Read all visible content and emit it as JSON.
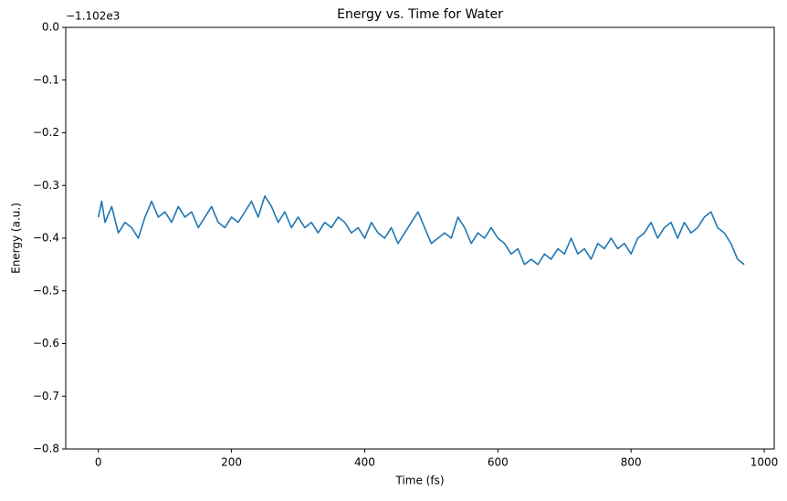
{
  "chart_data": {
    "type": "line",
    "title": "Energy vs. Time for Water",
    "x_label": "Time (fs)",
    "y_label": "Energy (a.u.)",
    "y_offset_label": "−1.102e3",
    "x": [
      0,
      5,
      10,
      20,
      30,
      40,
      50,
      60,
      70,
      80,
      90,
      100,
      110,
      120,
      130,
      140,
      150,
      160,
      170,
      180,
      190,
      200,
      210,
      220,
      230,
      240,
      250,
      260,
      270,
      280,
      290,
      300,
      310,
      320,
      330,
      340,
      350,
      360,
      370,
      380,
      390,
      400,
      410,
      420,
      430,
      440,
      450,
      460,
      470,
      480,
      490,
      500,
      510,
      520,
      530,
      540,
      550,
      560,
      570,
      580,
      590,
      600,
      610,
      620,
      630,
      640,
      650,
      660,
      670,
      680,
      690,
      700,
      710,
      720,
      730,
      740,
      750,
      760,
      770,
      780,
      790,
      800,
      810,
      820,
      830,
      840,
      850,
      860,
      870,
      880,
      890,
      900,
      910,
      920,
      930,
      940,
      950,
      960,
      970
    ],
    "series": [
      {
        "name": "Energy",
        "color": "#1f77b4",
        "values": [
          -0.36,
          -0.33,
          -0.37,
          -0.34,
          -0.39,
          -0.37,
          -0.38,
          -0.4,
          -0.36,
          -0.33,
          -0.36,
          -0.35,
          -0.37,
          -0.34,
          -0.36,
          -0.35,
          -0.38,
          -0.36,
          -0.34,
          -0.37,
          -0.38,
          -0.36,
          -0.37,
          -0.35,
          -0.33,
          -0.36,
          -0.32,
          -0.34,
          -0.37,
          -0.35,
          -0.38,
          -0.36,
          -0.38,
          -0.37,
          -0.39,
          -0.37,
          -0.38,
          -0.36,
          -0.37,
          -0.39,
          -0.38,
          -0.4,
          -0.37,
          -0.39,
          -0.4,
          -0.38,
          -0.41,
          -0.39,
          -0.37,
          -0.35,
          -0.38,
          -0.41,
          -0.4,
          -0.39,
          -0.4,
          -0.36,
          -0.38,
          -0.41,
          -0.39,
          -0.4,
          -0.38,
          -0.4,
          -0.41,
          -0.43,
          -0.42,
          -0.45,
          -0.44,
          -0.45,
          -0.43,
          -0.44,
          -0.42,
          -0.43,
          -0.4,
          -0.43,
          -0.42,
          -0.44,
          -0.41,
          -0.42,
          -0.4,
          -0.42,
          -0.41,
          -0.43,
          -0.4,
          -0.39,
          -0.37,
          -0.4,
          -0.38,
          -0.37,
          -0.4,
          -0.37,
          -0.39,
          -0.38,
          -0.36,
          -0.35,
          -0.38,
          -0.39,
          -0.41,
          -0.44,
          -0.45
        ]
      }
    ],
    "xlim": [
      -49,
      1015
    ],
    "xticks": [
      0,
      200,
      400,
      600,
      800,
      1000
    ],
    "ylim": [
      -0.8,
      0
    ],
    "yticks": [
      {
        "value": 0,
        "label": "0.0"
      },
      {
        "value": -0.1,
        "label": "−0.1"
      },
      {
        "value": -0.2,
        "label": "−0.2"
      },
      {
        "value": -0.3,
        "label": "−0.3"
      },
      {
        "value": -0.4,
        "label": "−0.4"
      },
      {
        "value": -0.5,
        "label": "−0.5"
      },
      {
        "value": -0.6,
        "label": "−0.6"
      },
      {
        "value": -0.7,
        "label": "−0.7"
      },
      {
        "value": -0.8,
        "label": "−0.8"
      }
    ],
    "grid": false
  }
}
